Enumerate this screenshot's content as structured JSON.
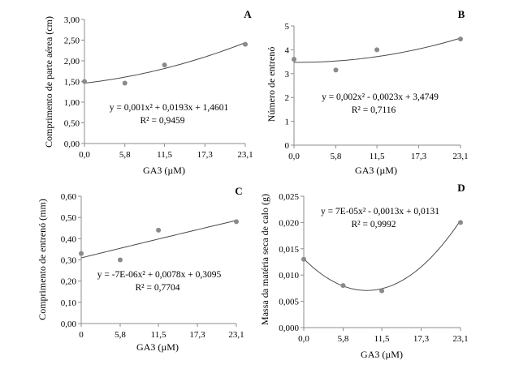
{
  "chart_data": [
    {
      "type": "scatter",
      "panel_label": "A",
      "xlabel": "GA3 (µM)",
      "ylabel": "Comprimento de parte aérea (cm)",
      "x_ticks": [
        "0,0",
        "5,8",
        "11,5",
        "17,3",
        "23,1"
      ],
      "x_tick_values": [
        0,
        5.8,
        11.5,
        17.3,
        23.1
      ],
      "y_ticks": [
        "0,00",
        "0,50",
        "1,00",
        "1,50",
        "2,00",
        "2,50",
        "3,00"
      ],
      "ylim": [
        0,
        3
      ],
      "xlim": [
        0,
        23.1
      ],
      "x": [
        0,
        5.8,
        11.5,
        23.1
      ],
      "y": [
        1.5,
        1.46,
        1.9,
        2.4
      ],
      "trendline": {
        "type": "polynomial",
        "coefficients": [
          0.001,
          0.0193,
          1.4601
        ]
      },
      "equation_line1": "y = 0,001x² + 0,0193x + 1,4601",
      "equation_line2": "R² = 0,9459",
      "point_color": "#8a8a8a",
      "line_color": "#4a4a4a"
    },
    {
      "type": "scatter",
      "panel_label": "B",
      "xlabel": "GA3 (µM)",
      "ylabel": "Número de entrenó",
      "x_ticks": [
        "0,0",
        "5,8",
        "11,5",
        "17,3",
        "23,1"
      ],
      "x_tick_values": [
        0,
        5.8,
        11.5,
        17.3,
        23.1
      ],
      "y_ticks": [
        "0",
        "1",
        "2",
        "3",
        "4",
        "5"
      ],
      "ylim": [
        0,
        5
      ],
      "xlim": [
        0,
        23.1
      ],
      "x": [
        0,
        5.8,
        11.5,
        23.1
      ],
      "y": [
        3.6,
        3.15,
        4.0,
        4.45
      ],
      "trendline": {
        "type": "polynomial",
        "coefficients": [
          0.002,
          -0.0023,
          3.4749
        ]
      },
      "equation_line1": "y = 0,002x² - 0,0023x + 3,4749",
      "equation_line2": "R² = 0,7116",
      "point_color": "#8a8a8a",
      "line_color": "#4a4a4a"
    },
    {
      "type": "scatter",
      "panel_label": "C",
      "xlabel": "GA3 (µM)",
      "ylabel": "Comprimento de entrenó (mm)",
      "x_ticks": [
        "0",
        "5,8",
        "11,5",
        "17,3",
        "23,1"
      ],
      "x_tick_values": [
        0,
        5.8,
        11.5,
        17.3,
        23.1
      ],
      "y_ticks": [
        "0,00",
        "0,10",
        "0,20",
        "0,30",
        "0,40",
        "0,50",
        "0,60"
      ],
      "ylim": [
        0,
        0.6
      ],
      "xlim": [
        0,
        23.1
      ],
      "x": [
        0,
        5.8,
        11.5,
        23.1
      ],
      "y": [
        0.33,
        0.3,
        0.44,
        0.48
      ],
      "trendline": {
        "type": "polynomial",
        "coefficients": [
          -7e-06,
          0.0078,
          0.3095
        ]
      },
      "equation_line1": "y = -7E-06x² + 0,0078x + 0,3095",
      "equation_line2": "R² = 0,7704",
      "point_color": "#8a8a8a",
      "line_color": "#4a4a4a"
    },
    {
      "type": "scatter",
      "panel_label": "D",
      "xlabel": "GA3 (µM)",
      "ylabel": "Massa da matéria seca de calo (g)",
      "x_ticks": [
        "0,0",
        "5,8",
        "11,5",
        "17,3",
        "23,1"
      ],
      "x_tick_values": [
        0,
        5.8,
        11.5,
        17.3,
        23.1
      ],
      "y_ticks": [
        "0,000",
        "0,005",
        "0,010",
        "0,015",
        "0,020",
        "0,025"
      ],
      "ylim": [
        0,
        0.025
      ],
      "xlim": [
        0,
        23.1
      ],
      "x": [
        0,
        5.8,
        11.5,
        23.1
      ],
      "y": [
        0.013,
        0.008,
        0.007,
        0.02
      ],
      "trendline": {
        "type": "polynomial",
        "coefficients": [
          7e-05,
          -0.0013,
          0.0131
        ]
      },
      "equation_line1": "y = 7E-05x² - 0,0013x + 0,0131",
      "equation_line2": "R² = 0,9992",
      "point_color": "#8a8a8a",
      "line_color": "#4a4a4a"
    }
  ]
}
